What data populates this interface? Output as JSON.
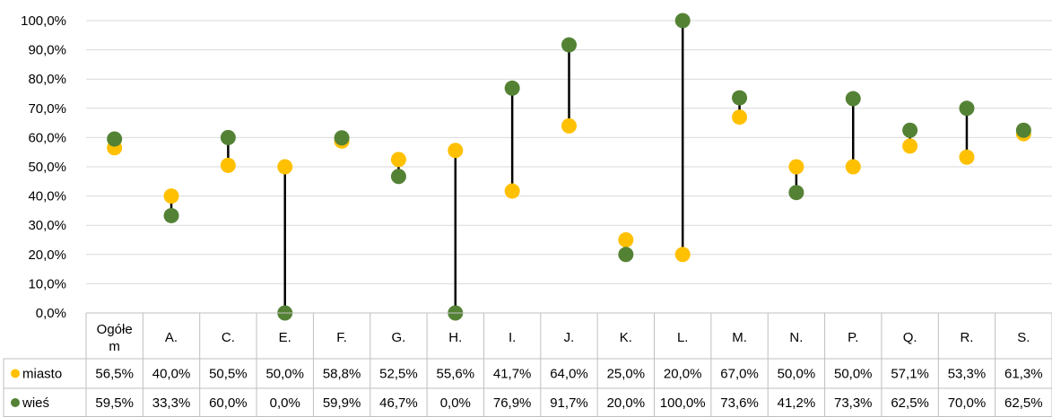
{
  "chart_data": {
    "type": "scatter",
    "subtype": "dumbbell-with-data-table",
    "categories": [
      "Ogółem",
      "A.",
      "C.",
      "E.",
      "F.",
      "G.",
      "H.",
      "I.",
      "J.",
      "K.",
      "L.",
      "M.",
      "N.",
      "P.",
      "Q.",
      "R.",
      "S."
    ],
    "category_display": [
      [
        "Ogółe",
        "m"
      ],
      [
        "A."
      ],
      [
        "C."
      ],
      [
        "E."
      ],
      [
        "F."
      ],
      [
        "G."
      ],
      [
        "H."
      ],
      [
        "I."
      ],
      [
        "J."
      ],
      [
        "K."
      ],
      [
        "L."
      ],
      [
        "M."
      ],
      [
        "N."
      ],
      [
        "P."
      ],
      [
        "Q."
      ],
      [
        "R."
      ],
      [
        "S."
      ]
    ],
    "series": [
      {
        "name": "miasto",
        "color": "#FFC000",
        "values": [
          56.5,
          40.0,
          50.5,
          50.0,
          58.8,
          52.5,
          55.6,
          41.7,
          64.0,
          25.0,
          20.0,
          67.0,
          50.0,
          50.0,
          57.1,
          53.3,
          61.3
        ],
        "labels": [
          "56,5%",
          "40,0%",
          "50,5%",
          "50,0%",
          "58,8%",
          "52,5%",
          "55,6%",
          "41,7%",
          "64,0%",
          "25,0%",
          "20,0%",
          "67,0%",
          "50,0%",
          "50,0%",
          "57,1%",
          "53,3%",
          "61,3%"
        ]
      },
      {
        "name": "wieś",
        "color": "#548235",
        "values": [
          59.5,
          33.3,
          60.0,
          0.0,
          59.9,
          46.7,
          0.0,
          76.9,
          91.7,
          20.0,
          100.0,
          73.6,
          41.2,
          73.3,
          62.5,
          70.0,
          62.5
        ],
        "labels": [
          "59,5%",
          "33,3%",
          "60,0%",
          "0,0%",
          "59,9%",
          "46,7%",
          "0,0%",
          "76,9%",
          "91,7%",
          "20,0%",
          "100,0%",
          "73,6%",
          "41,2%",
          "73,3%",
          "62,5%",
          "70,0%",
          "62,5%"
        ]
      }
    ],
    "connector_color": "#000000",
    "y_ticks": [
      "0,0%",
      "10,0%",
      "20,0%",
      "30,0%",
      "40,0%",
      "50,0%",
      "60,0%",
      "70,0%",
      "80,0%",
      "90,0%",
      "100,0%"
    ],
    "ylim": [
      0,
      100
    ],
    "grid": true,
    "legend": "data-table-rows",
    "title": "",
    "xlabel": "",
    "ylabel": ""
  }
}
